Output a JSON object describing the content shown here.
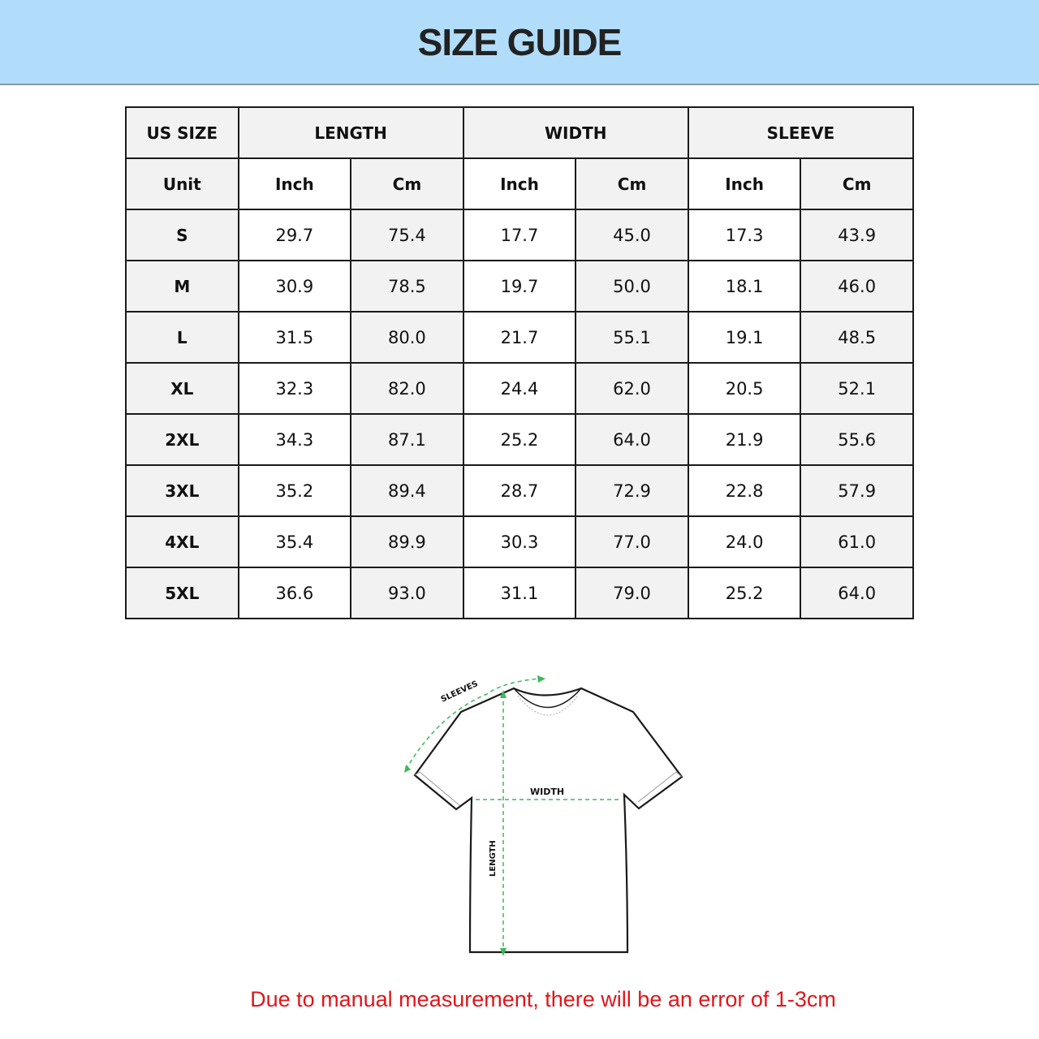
{
  "header": {
    "title": "SIZE GUIDE"
  },
  "table": {
    "group_headers": [
      "US SIZE",
      "LENGTH",
      "WIDTH",
      "SLEEVE"
    ],
    "unit_row": [
      "Unit",
      "Inch",
      "Cm",
      "Inch",
      "Cm",
      "Inch",
      "Cm"
    ],
    "rows": [
      [
        "S",
        "29.7",
        "75.4",
        "17.7",
        "45.0",
        "17.3",
        "43.9"
      ],
      [
        "M",
        "30.9",
        "78.5",
        "19.7",
        "50.0",
        "18.1",
        "46.0"
      ],
      [
        "L",
        "31.5",
        "80.0",
        "21.7",
        "55.1",
        "19.1",
        "48.5"
      ],
      [
        "XL",
        "32.3",
        "82.0",
        "24.4",
        "62.0",
        "20.5",
        "52.1"
      ],
      [
        "2XL",
        "34.3",
        "87.1",
        "25.2",
        "64.0",
        "21.9",
        "55.6"
      ],
      [
        "3XL",
        "35.2",
        "89.4",
        "28.7",
        "72.9",
        "22.8",
        "57.9"
      ],
      [
        "4XL",
        "35.4",
        "89.9",
        "30.3",
        "77.0",
        "24.0",
        "61.0"
      ],
      [
        "5XL",
        "36.6",
        "93.0",
        "31.1",
        "79.0",
        "25.2",
        "64.0"
      ]
    ]
  },
  "diagram": {
    "labels": {
      "sleeves": "SLEEVES",
      "width": "WIDTH",
      "length": "LENGTH"
    }
  },
  "footer": {
    "note": "Due to manual measurement, there will be an error of 1-3cm"
  },
  "colors": {
    "banner": "#b1ddfb",
    "note": "#e0161b",
    "measure_lines": "#3cb95a"
  }
}
